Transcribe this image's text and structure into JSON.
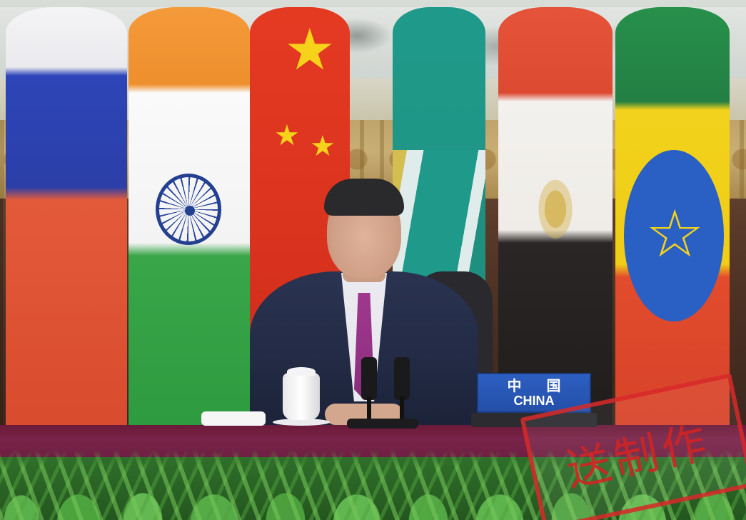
{
  "nameplate": {
    "chinese": "中 国",
    "english": "CHINA",
    "color": "#2d5fc2"
  },
  "flags": [
    "russia",
    "india",
    "china",
    "south-africa",
    "egypt",
    "ethiopia"
  ],
  "watermark": {
    "text": "送制作",
    "color": "#d72828"
  }
}
